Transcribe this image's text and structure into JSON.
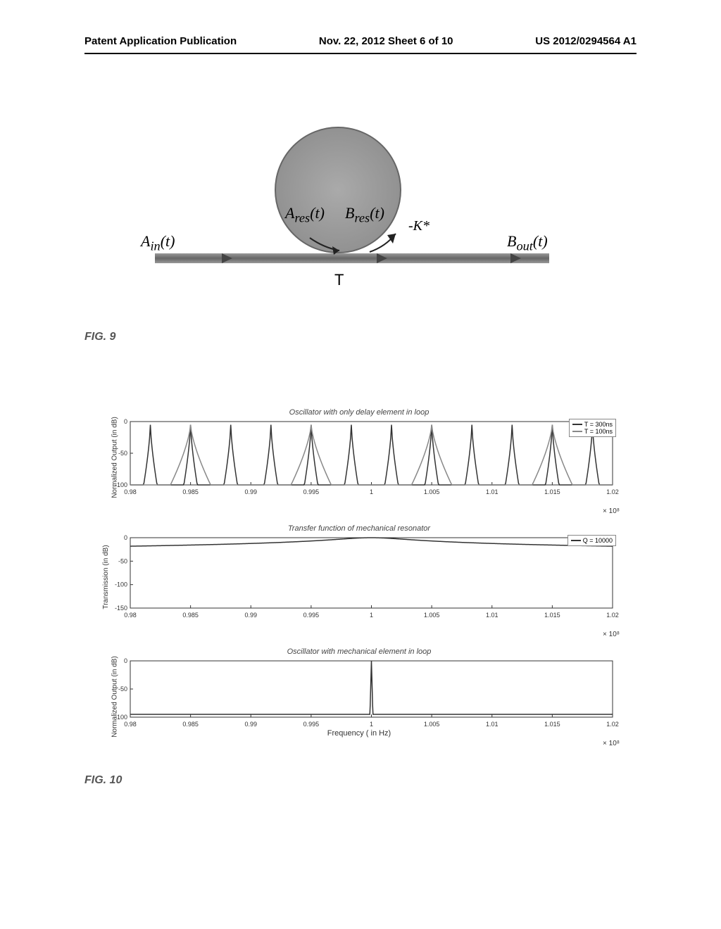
{
  "header": {
    "left": "Patent Application Publication",
    "center": "Nov. 22, 2012  Sheet 6 of 10",
    "right": "US 2012/0294564 A1"
  },
  "fig9": {
    "label": "FIG. 9",
    "a_in": "A",
    "a_in_sub": "in",
    "a_in_arg": "(t)",
    "a_res": "A",
    "a_res_sub": "res",
    "a_res_arg": "(t)",
    "b_res": "B",
    "b_res_sub": "res",
    "b_res_arg": "(t)",
    "b_out": "B",
    "b_out_sub": "out",
    "b_out_arg": "(t)",
    "coupling": "-K*",
    "t_label": "T"
  },
  "fig10": {
    "label": "FIG. 10",
    "xlabel": "Frequency ( in Hz)",
    "x_scale": "× 10⁸",
    "xticks": [
      "0.98",
      "0.985",
      "0.99",
      "0.995",
      "1",
      "1.005",
      "1.01",
      "1.015",
      "1.02"
    ],
    "panel1": {
      "title": "Oscillator with only delay element in loop",
      "ylabel": "Normalized Output (in dB)",
      "yticks": [
        "0",
        "-50",
        "-100"
      ],
      "ylim": [
        -100,
        0
      ],
      "legend": [
        {
          "label": "T = 300ns",
          "color": "#333333"
        },
        {
          "label": "T = 100ns",
          "color": "#888888"
        }
      ],
      "series1_color": "#333333",
      "series2_color": "#888888",
      "line_width": 1.5,
      "background_color": "#ffffff",
      "grid_color": "#cccccc"
    },
    "panel2": {
      "title": "Transfer function of mechanical resonator",
      "ylabel": "Transmission (in dB)",
      "yticks": [
        "0",
        "-50",
        "-100",
        "-150"
      ],
      "ylim": [
        -150,
        0
      ],
      "legend": [
        {
          "label": "Q = 10000",
          "color": "#333333"
        }
      ],
      "series_color": "#333333",
      "line_width": 1.5,
      "peak_x": 1.0,
      "background_color": "#ffffff"
    },
    "panel3": {
      "title": "Oscillator with mechanical element in loop",
      "ylabel": "Normalized Output (in dB)",
      "yticks": [
        "0",
        "-50",
        "-100"
      ],
      "ylim": [
        -100,
        0
      ],
      "series_color": "#333333",
      "line_width": 1.5,
      "peak_x": 1.0,
      "background_color": "#ffffff"
    }
  }
}
